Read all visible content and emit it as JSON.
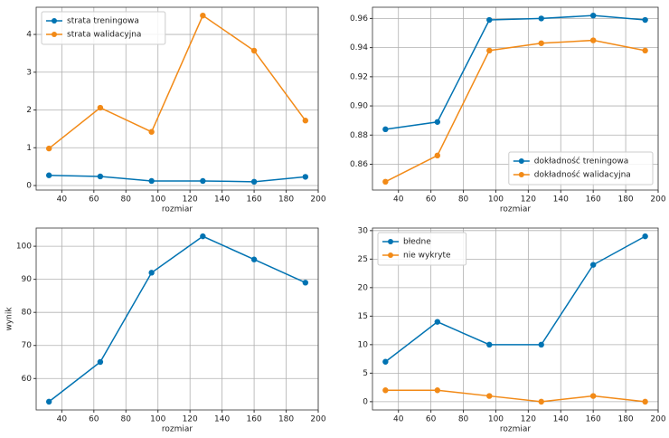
{
  "chart_data": [
    {
      "type": "line",
      "x": [
        32,
        64,
        96,
        128,
        160,
        192
      ],
      "xlim": [
        24,
        200
      ],
      "xticks": [
        40,
        60,
        80,
        100,
        120,
        140,
        160,
        180,
        200
      ],
      "xlabel": "rozmiar",
      "ylim": [
        -0.12,
        4.72
      ],
      "yticks": [
        0,
        1,
        2,
        3,
        4
      ],
      "grid": true,
      "legend": "upper left",
      "series": [
        {
          "name": "strata treningowa",
          "color": "#0173b2",
          "values": [
            0.27,
            0.24,
            0.12,
            0.12,
            0.1,
            0.23
          ]
        },
        {
          "name": "strata walidacyjna",
          "color": "#f28a17",
          "values": [
            0.98,
            2.06,
            1.42,
            4.5,
            3.57,
            1.72
          ]
        }
      ]
    },
    {
      "type": "line",
      "x": [
        32,
        64,
        96,
        128,
        160,
        192
      ],
      "xlim": [
        24,
        200
      ],
      "xticks": [
        40,
        60,
        80,
        100,
        120,
        140,
        160,
        180,
        200
      ],
      "xlabel": "rozmiar",
      "ylim": [
        0.8423,
        0.9677
      ],
      "yticks": [
        0.86,
        0.88,
        {
          "value": 0.9,
          "label": "0.90"
        },
        0.92,
        0.94,
        0.96
      ],
      "grid": true,
      "legend": "lower right",
      "series": [
        {
          "name": "dokładność treningowa",
          "color": "#0173b2",
          "values": [
            0.884,
            0.889,
            0.959,
            0.96,
            0.962,
            0.959
          ]
        },
        {
          "name": "dokładność walidacyjna",
          "color": "#f28a17",
          "values": [
            0.848,
            0.866,
            0.938,
            0.943,
            0.945,
            0.938
          ]
        }
      ]
    },
    {
      "type": "line",
      "x": [
        32,
        64,
        96,
        128,
        160,
        192
      ],
      "xlim": [
        24,
        200
      ],
      "xticks": [
        40,
        60,
        80,
        100,
        120,
        140,
        160,
        180,
        200
      ],
      "xlabel": "rozmiar",
      "ylabel": "wynik",
      "ylim": [
        50.5,
        105.5
      ],
      "yticks": [
        60,
        70,
        80,
        90,
        100
      ],
      "grid": true,
      "series": [
        {
          "color": "#0173b2",
          "values": [
            53,
            65,
            92,
            103,
            96,
            89
          ]
        }
      ]
    },
    {
      "type": "line",
      "x": [
        32,
        64,
        96,
        128,
        160,
        192
      ],
      "xlim": [
        24,
        200
      ],
      "xticks": [
        40,
        60,
        80,
        100,
        120,
        140,
        160,
        180,
        200
      ],
      "xlabel": "rozmiar",
      "ylim": [
        -1.45,
        30.45
      ],
      "yticks": [
        0,
        5,
        10,
        15,
        20,
        25,
        30
      ],
      "grid": true,
      "legend": "upper left",
      "series": [
        {
          "name": "błedne",
          "color": "#0173b2",
          "values": [
            7,
            14,
            10,
            10,
            24,
            29
          ]
        },
        {
          "name": "nie wykryte",
          "color": "#f28a17",
          "values": [
            2,
            2,
            1,
            0,
            1,
            0
          ]
        }
      ]
    }
  ]
}
